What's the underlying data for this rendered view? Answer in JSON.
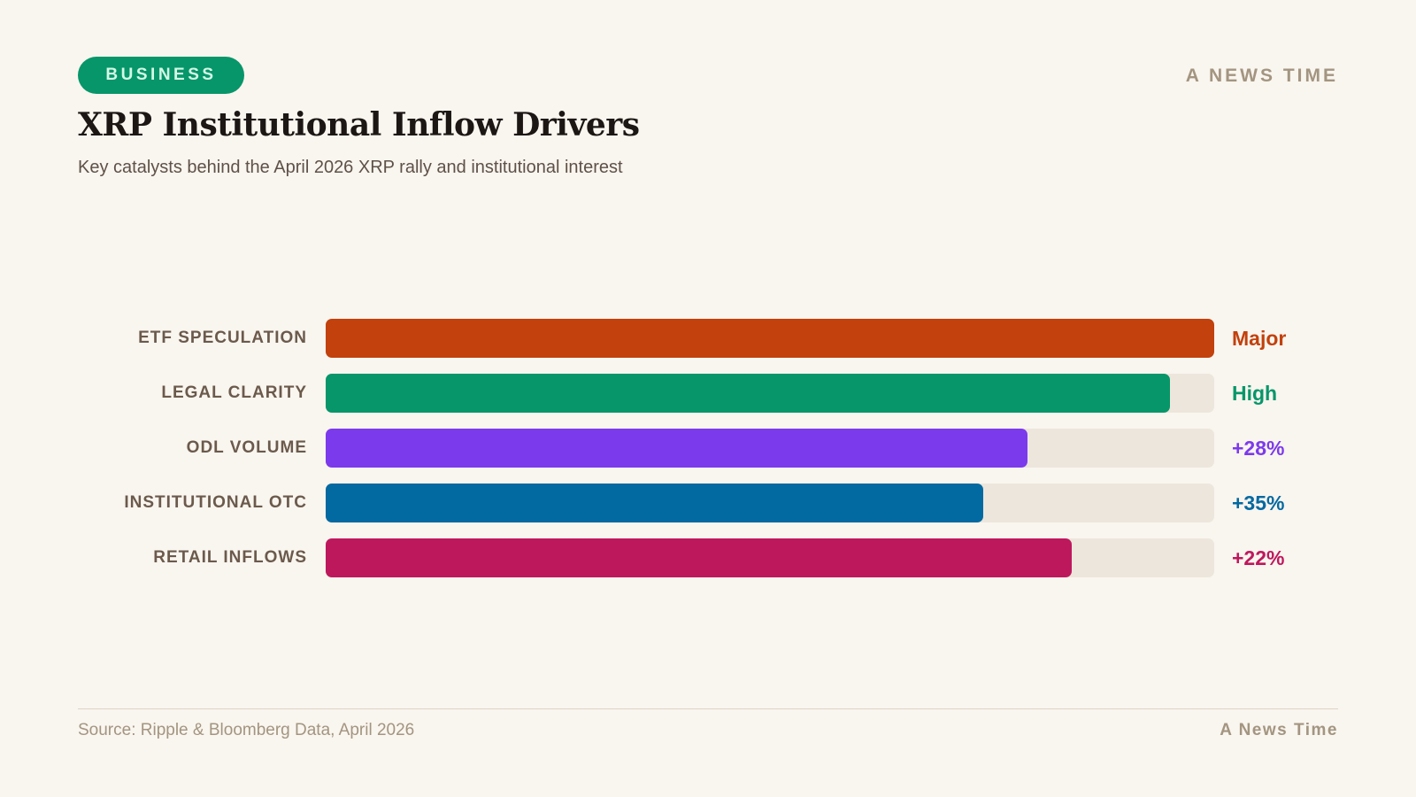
{
  "header": {
    "badge": "BUSINESS",
    "brand": "A NEWS TIME",
    "title": "XRP Institutional Inflow Drivers",
    "subtitle": "Key catalysts behind the April 2026 XRP rally and institutional interest"
  },
  "chart_data": {
    "type": "bar",
    "orientation": "horizontal",
    "title": "XRP Institutional Inflow Drivers",
    "categories": [
      "ETF SPECULATION",
      "LEGAL CLARITY",
      "ODL VOLUME",
      "INSTITUTIONAL OTC",
      "RETAIL INFLOWS"
    ],
    "values": [
      100,
      95,
      79,
      74,
      84
    ],
    "value_labels": [
      "Major",
      "High",
      "+28%",
      "+35%",
      "+22%"
    ],
    "colors": [
      "#c2410c",
      "#069669",
      "#7c3aed",
      "#0369a1",
      "#be185d"
    ],
    "xlim": [
      0,
      100
    ],
    "grid": false
  },
  "footer": {
    "source": "Source: Ripple & Bloomberg Data, April 2026",
    "brand": "A News Time"
  }
}
